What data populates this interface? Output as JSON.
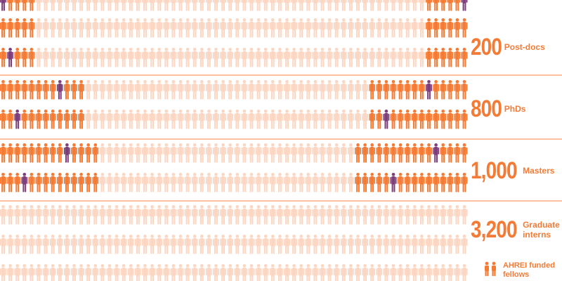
{
  "colors": {
    "funded": "#f47b35",
    "unfunded": "#fbd6c2",
    "accent": "#7c3f7a",
    "divider": "#fbc09e"
  },
  "icon": "person-icon",
  "categories": [
    {
      "count": "200",
      "label": "Post-docs",
      "funded_fraction": 0.16
    },
    {
      "count": "800",
      "label": "PhDs",
      "funded_fraction": 0.4
    },
    {
      "count": "1,000",
      "label": "Masters",
      "funded_fraction": 0.46
    },
    {
      "count": "3,200",
      "label": "Graduate interns",
      "funded_fraction": 0
    }
  ],
  "legend": {
    "icon": "person-pair-icon",
    "label": "AHREI funded fellows"
  }
}
